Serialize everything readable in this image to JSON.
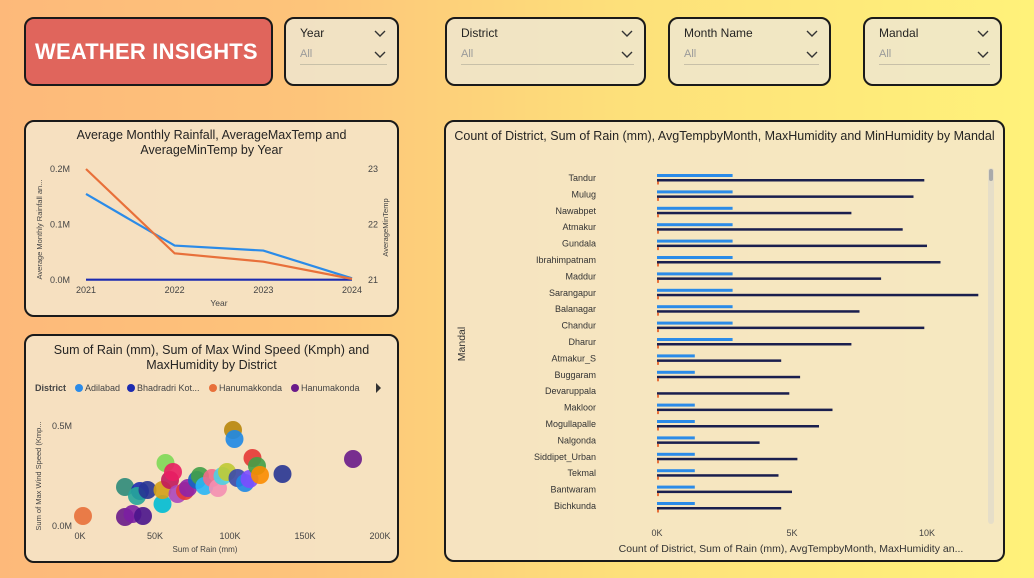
{
  "header": {
    "title": "WEATHER INSIGHTS"
  },
  "slicers": [
    {
      "label": "Year",
      "value": "All"
    },
    {
      "label": "District",
      "value": "All"
    },
    {
      "label": "Month Name",
      "value": "All"
    },
    {
      "label": "Mandal",
      "value": "All"
    }
  ],
  "colors": {
    "accent": "#e0655c",
    "blue": "#2b8be8",
    "orange": "#e8703a",
    "navy": "#1c2bb0",
    "darkbar": "#1a1f4e"
  },
  "chart_data": [
    {
      "type": "line",
      "title": "Average Monthly Rainfall, AverageMaxTemp and AverageMinTemp by Year",
      "xlabel": "Year",
      "ylabel": "Average Monthly Rainfall an...",
      "y2label": "AverageMinTemp",
      "categories": [
        "2021",
        "2022",
        "2023",
        "2024"
      ],
      "yticks": [
        "0.2M",
        "0.1M",
        "0.0M"
      ],
      "y2ticks": [
        "23",
        "22",
        "21"
      ],
      "ylim": [
        0,
        200000
      ],
      "y2lim": [
        21,
        23
      ],
      "series": [
        {
          "color": "#2b8be8",
          "axis": "left",
          "values": [
            155000,
            62000,
            53000,
            3000
          ]
        },
        {
          "color": "#1c2bb0",
          "axis": "left",
          "values": [
            600,
            600,
            600,
            600
          ]
        },
        {
          "color": "#e8703a",
          "axis": "right",
          "values": [
            23.0,
            21.48,
            21.33,
            21.02
          ]
        }
      ]
    },
    {
      "type": "scatter",
      "title": "Sum of Rain (mm), Sum of Max Wind Speed (Kmph) and MaxHumidity by District",
      "legend_title": "District",
      "legend": [
        {
          "name": "Adilabad",
          "color": "#2b8be8"
        },
        {
          "name": "Bhadradri Kot...",
          "color": "#1c2bb0"
        },
        {
          "name": "Hanumakkonda",
          "color": "#e8703a"
        },
        {
          "name": "Hanumakonda",
          "color": "#6a1b8a"
        }
      ],
      "xlabel": "Sum of Rain (mm)",
      "ylabel": "Sum of Max Wind Speed (Kmp...",
      "xticks": [
        "0K",
        "50K",
        "100K",
        "150K",
        "200K"
      ],
      "yticks": [
        "0.5M",
        "0.0M"
      ],
      "xlim": [
        0,
        200000
      ],
      "ylim": [
        0,
        500000
      ],
      "points": [
        {
          "x": 2000,
          "y": 50000,
          "c": "#e8703a"
        },
        {
          "x": 30000,
          "y": 45000,
          "c": "#6a1b8a"
        },
        {
          "x": 35000,
          "y": 60000,
          "c": "#7b1fa2"
        },
        {
          "x": 42000,
          "y": 50000,
          "c": "#4a148c"
        },
        {
          "x": 30000,
          "y": 195000,
          "c": "#2e8b7a"
        },
        {
          "x": 40000,
          "y": 175000,
          "c": "#1c2bb0"
        },
        {
          "x": 38000,
          "y": 150000,
          "c": "#26a69a"
        },
        {
          "x": 45000,
          "y": 180000,
          "c": "#283593"
        },
        {
          "x": 55000,
          "y": 110000,
          "c": "#00bcd4"
        },
        {
          "x": 55000,
          "y": 180000,
          "c": "#d4a017"
        },
        {
          "x": 57000,
          "y": 315000,
          "c": "#7ed957"
        },
        {
          "x": 60000,
          "y": 230000,
          "c": "#c2185b"
        },
        {
          "x": 62000,
          "y": 270000,
          "c": "#e91e63"
        },
        {
          "x": 65000,
          "y": 160000,
          "c": "#ab47bc"
        },
        {
          "x": 70000,
          "y": 175000,
          "c": "#e53935"
        },
        {
          "x": 72000,
          "y": 190000,
          "c": "#8e24aa"
        },
        {
          "x": 78000,
          "y": 230000,
          "c": "#1565c0"
        },
        {
          "x": 80000,
          "y": 250000,
          "c": "#43a047"
        },
        {
          "x": 83000,
          "y": 200000,
          "c": "#29b6f6"
        },
        {
          "x": 88000,
          "y": 240000,
          "c": "#ef6c8a"
        },
        {
          "x": 92000,
          "y": 190000,
          "c": "#f48fb1"
        },
        {
          "x": 95000,
          "y": 250000,
          "c": "#4dd0e1"
        },
        {
          "x": 98000,
          "y": 270000,
          "c": "#c0ca33"
        },
        {
          "x": 102000,
          "y": 480000,
          "c": "#b8860b"
        },
        {
          "x": 103000,
          "y": 435000,
          "c": "#1e88e5"
        },
        {
          "x": 105000,
          "y": 240000,
          "c": "#3949ab"
        },
        {
          "x": 110000,
          "y": 215000,
          "c": "#1e88e5"
        },
        {
          "x": 113000,
          "y": 235000,
          "c": "#7c4dff"
        },
        {
          "x": 115000,
          "y": 340000,
          "c": "#e53935"
        },
        {
          "x": 118000,
          "y": 300000,
          "c": "#43a047"
        },
        {
          "x": 120000,
          "y": 255000,
          "c": "#fb8c00"
        },
        {
          "x": 135000,
          "y": 260000,
          "c": "#283593"
        },
        {
          "x": 182000,
          "y": 335000,
          "c": "#6a1b8a"
        }
      ]
    },
    {
      "type": "bar",
      "title": "Count of District, Sum of Rain (mm), AvgTempbyMonth, MaxHumidity and MinHumidity by Mandal",
      "ylabel": "Mandal",
      "xlabel": "Count of District, Sum of Rain (mm), AvgTempbyMonth, MaxHumidity an...",
      "xticks": [
        "0K",
        "5K",
        "10K"
      ],
      "xlim": [
        0,
        12000
      ],
      "categories": [
        "Tandur",
        "Mulug",
        "Nawabpet",
        "Atmakur",
        "Gundala",
        "Ibrahimpatnam",
        "Maddur",
        "Sarangapur",
        "Balanagar",
        "Chandur",
        "Dharur",
        "Atmakur_S",
        "Buggaram",
        "Devaruppala",
        "Makloor",
        "Mogullapalle",
        "Nalgonda",
        "Siddipet_Urban",
        "Tekmal",
        "Bantwaram",
        "Bichkunda"
      ],
      "series": [
        {
          "name": "blue",
          "color": "#2b8be8",
          "values": [
            2800,
            2800,
            2800,
            2800,
            2800,
            2800,
            2800,
            2800,
            2800,
            2800,
            2800,
            1400,
            1400,
            0,
            1400,
            1400,
            1400,
            1400,
            1400,
            1400,
            1400
          ]
        },
        {
          "name": "navy",
          "color": "#1a1f4e",
          "values": [
            9900,
            9500,
            7200,
            9100,
            10000,
            10500,
            8300,
            11900,
            7500,
            9900,
            7200,
            4600,
            5300,
            4900,
            6500,
            6000,
            3800,
            5200,
            4500,
            5000,
            4600
          ]
        }
      ]
    }
  ]
}
